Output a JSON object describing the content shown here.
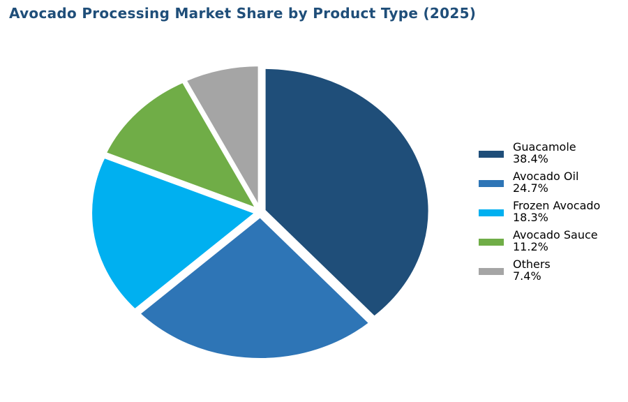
{
  "chart_data": {
    "type": "pie",
    "title": "Avocado Processing Market Share by Product Type (2025)",
    "slices": [
      {
        "label": "Guacamole",
        "value": 38.4,
        "value_label": "38.4%",
        "color": "#1f4e79"
      },
      {
        "label": "Avocado Oil",
        "value": 24.7,
        "value_label": "24.7%",
        "color": "#2e75b6"
      },
      {
        "label": "Frozen Avocado",
        "value": 18.3,
        "value_label": "18.3%",
        "color": "#00b0f0"
      },
      {
        "label": "Avocado Sauce",
        "value": 11.2,
        "value_label": "11.2%",
        "color": "#70ad47"
      },
      {
        "label": "Others",
        "value": 7.4,
        "value_label": "7.4%",
        "color": "#a5a5a5"
      }
    ],
    "start_angle_deg": 90,
    "direction": "clockwise",
    "exploded": true,
    "legend_position": "right"
  }
}
